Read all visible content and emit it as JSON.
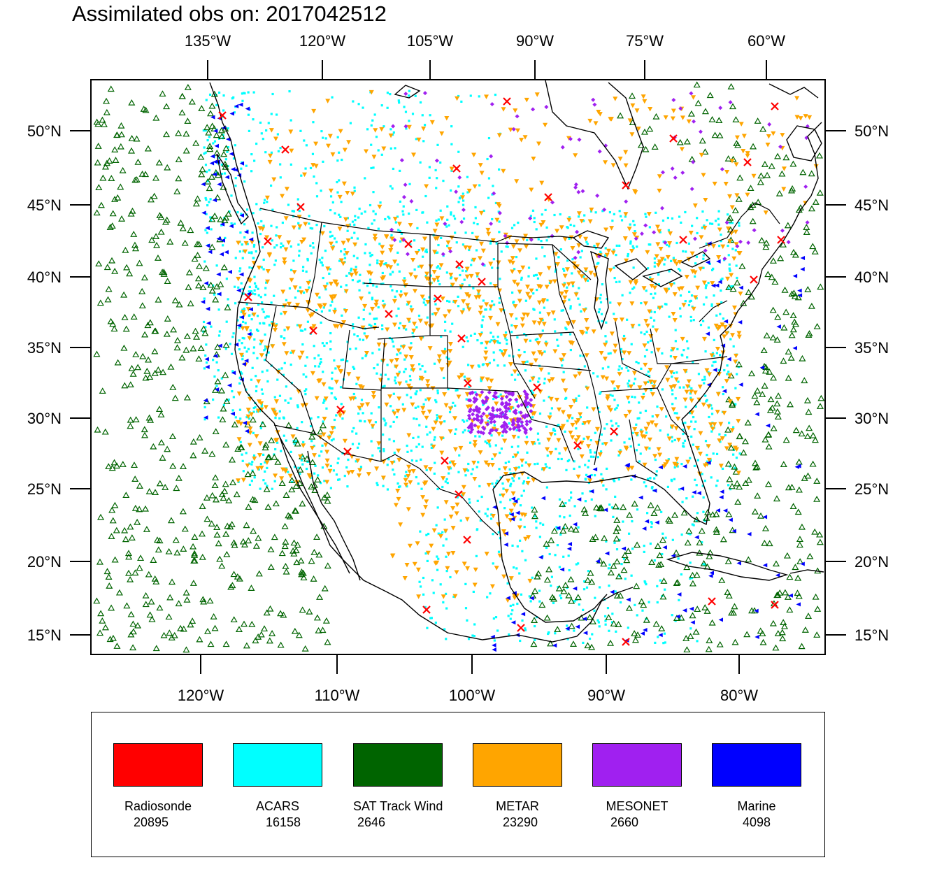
{
  "title": "Assimilated obs on: 2017042512",
  "axes": {
    "top_lon_labels": [
      "135°W",
      "120°W",
      "105°W",
      "90°W",
      "75°W",
      "60°W"
    ],
    "bottom_lon_labels": [
      "120°W",
      "110°W",
      "100°W",
      "90°W",
      "80°W"
    ],
    "lat_labels": [
      "50°N",
      "45°N",
      "40°N",
      "35°N",
      "30°N",
      "25°N",
      "20°N",
      "15°N"
    ]
  },
  "legend": [
    {
      "name": "Radiosonde",
      "count": "20895",
      "color": "#ff0000",
      "marker": "x-icon"
    },
    {
      "name": "ACARS",
      "count": "16158",
      "color": "#00ffff",
      "marker": "square-dot-icon"
    },
    {
      "name": "SAT Track Wind",
      "count": "2646",
      "color": "#006400",
      "marker": "triangle-up-icon"
    },
    {
      "name": "METAR",
      "count": "23290",
      "color": "#ffa500",
      "marker": "triangle-down-icon"
    },
    {
      "name": "MESONET",
      "count": "2660",
      "color": "#a020f0",
      "marker": "diamond-icon"
    },
    {
      "name": "Marine",
      "count": "4098",
      "color": "#0000ff",
      "marker": "triangle-left-icon"
    }
  ]
}
